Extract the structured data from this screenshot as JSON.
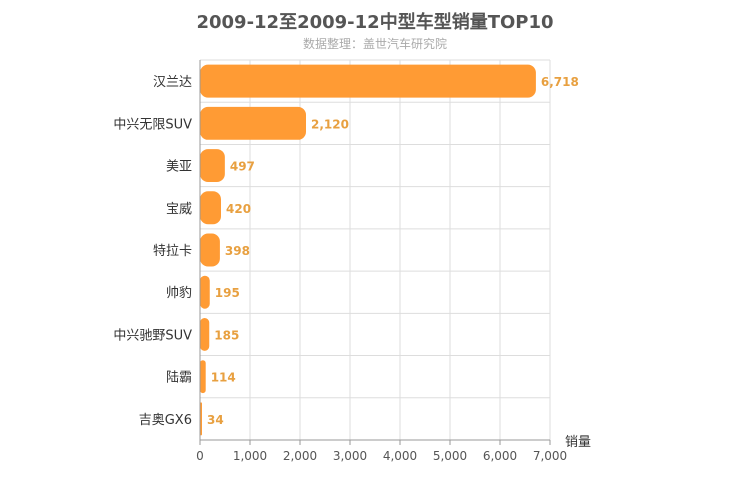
{
  "chart_data": {
    "type": "bar",
    "orientation": "horizontal",
    "title": "2009-12至2009-12中型车型销量TOP10",
    "subtitle": "数据整理：盖世汽车研究院",
    "xlabel": "销量",
    "ylabel": "",
    "xlim": [
      0,
      7000
    ],
    "x_ticks": [
      "0",
      "1,000",
      "2,000",
      "3,000",
      "4,000",
      "5,000",
      "6,000",
      "7,000"
    ],
    "tick_values": [
      0,
      1000,
      2000,
      3000,
      4000,
      5000,
      6000,
      7000
    ],
    "grid": true,
    "legend": "none",
    "bar_color": "#ff9b34",
    "label_color": "#e8a040",
    "categories": [
      "汉兰达",
      "中兴无限SUV",
      "美亚",
      "宝威",
      "特拉卡",
      "帅豹",
      "中兴驰野SUV",
      "陆霸",
      "吉奥GX6"
    ],
    "values": [
      6718,
      2120,
      497,
      420,
      398,
      195,
      185,
      114,
      34
    ],
    "value_labels": [
      "6,718",
      "2,120",
      "497",
      "420",
      "398",
      "195",
      "185",
      "114",
      "34"
    ]
  }
}
